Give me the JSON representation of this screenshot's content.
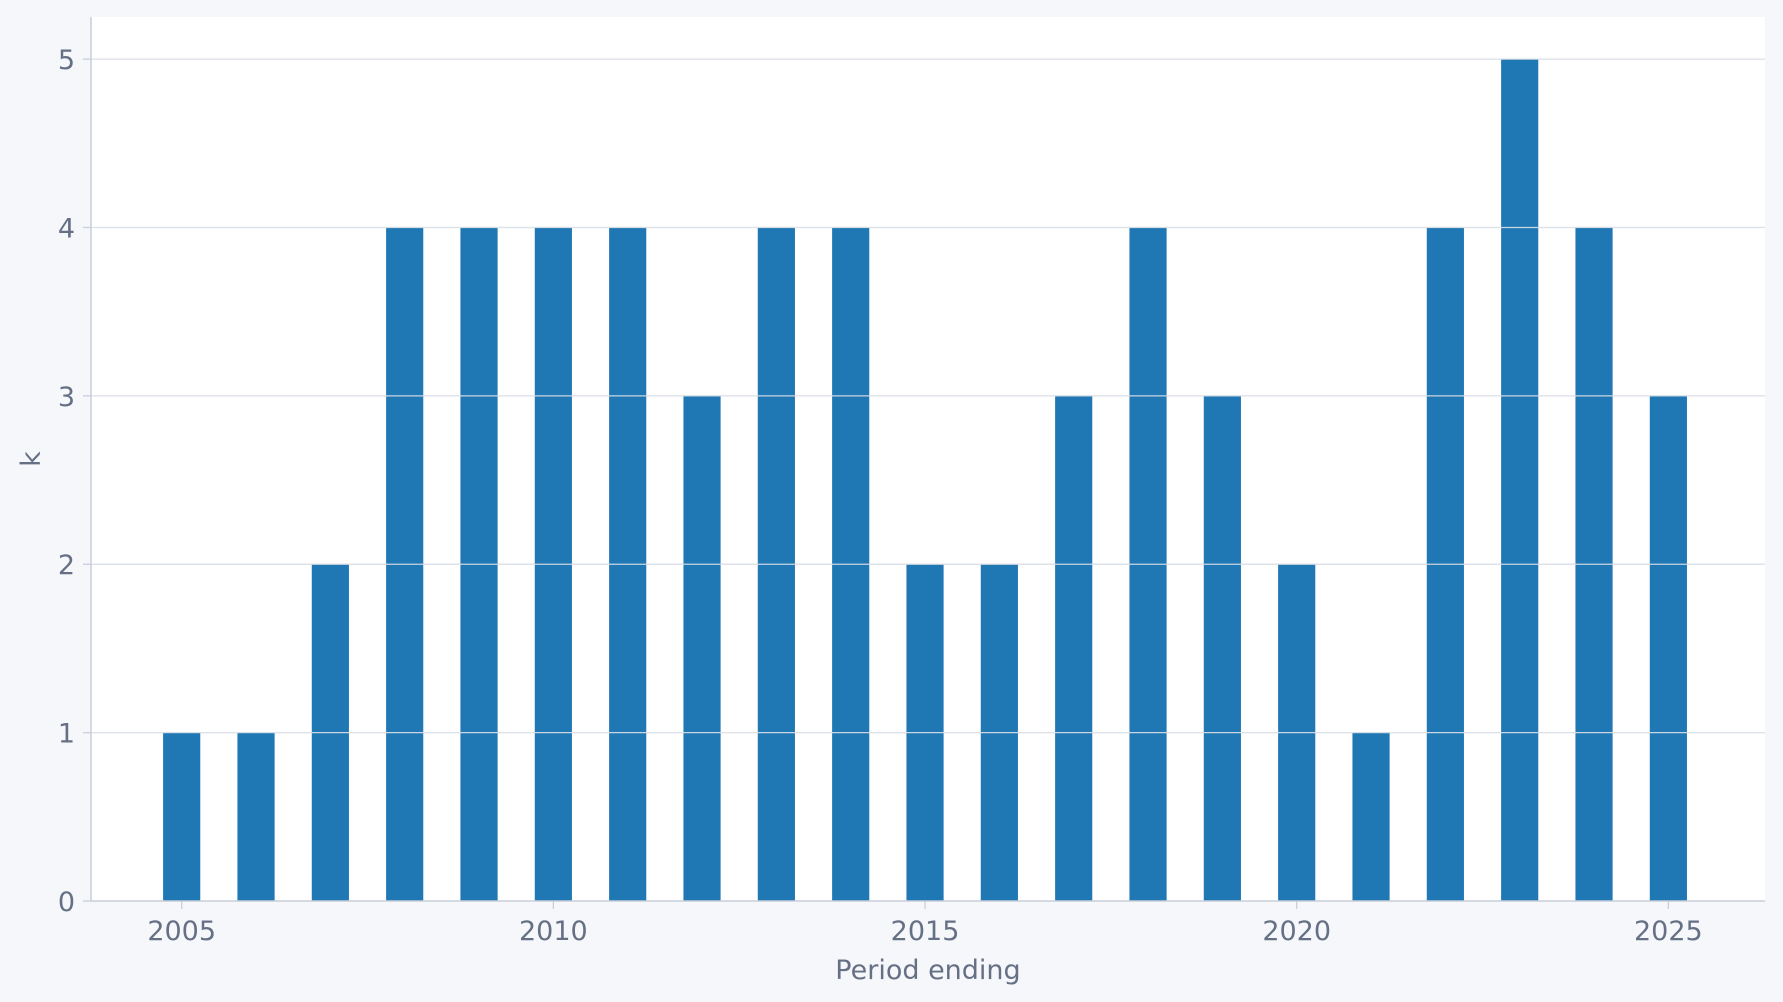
{
  "chart_data": {
    "type": "bar",
    "x": [
      2005,
      2006,
      2007,
      2008,
      2009,
      2010,
      2011,
      2012,
      2013,
      2014,
      2015,
      2016,
      2017,
      2018,
      2019,
      2020,
      2021,
      2022,
      2023,
      2024,
      2025
    ],
    "values": [
      1,
      1,
      2,
      4,
      4,
      4,
      4,
      3,
      4,
      4,
      2,
      2,
      3,
      4,
      3,
      2,
      1,
      4,
      5,
      4,
      3
    ],
    "title": "",
    "xlabel": "Period ending",
    "ylabel": "k",
    "xlim": [
      2003.78,
      2026.3
    ],
    "ylim": [
      0,
      5.25
    ],
    "xticks": [
      2005,
      2010,
      2015,
      2020,
      2025
    ],
    "yticks": [
      0,
      1,
      2,
      3,
      4,
      5
    ],
    "grid": "horizontal",
    "legend": "none",
    "bar_color": "#1f77b4",
    "plot_background": "#ffffff",
    "page_background": "#f5f7fb",
    "grid_color": "#dde1e8",
    "text_color": "#667085"
  }
}
